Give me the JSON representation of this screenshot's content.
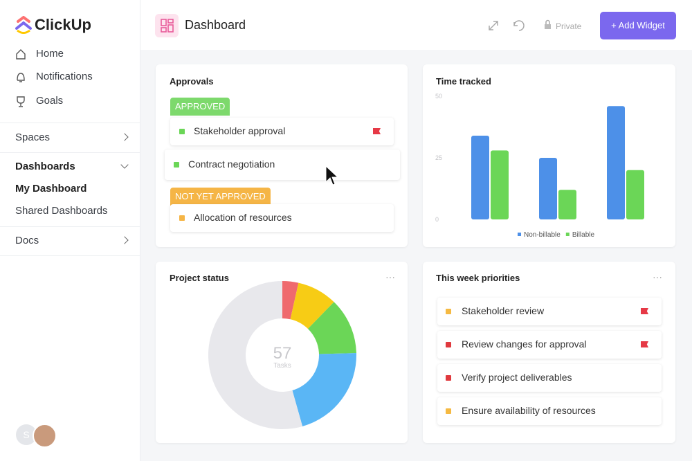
{
  "sidebar": {
    "logo": "ClickUp",
    "nav": [
      "Home",
      "Notifications",
      "Goals"
    ],
    "sections": [
      "Spaces",
      "Dashboards",
      "My Dashboard",
      "Shared Dashboards",
      "Docs"
    ],
    "avatar": "S"
  },
  "header": {
    "title": "Dashboard",
    "privacy": "Private",
    "button": "+ Add Widget"
  },
  "approvals": {
    "title": "Approvals",
    "groups": [
      {
        "label": "APPROVED",
        "color": "#7dd96c",
        "items": [
          {
            "text": "Stakeholder approval",
            "color": "#6bd657",
            "flagged": true
          },
          {
            "text": "Contract negotiation",
            "color": "#6bd657",
            "flagged": false
          }
        ]
      },
      {
        "label": "NOT YET APPROVED",
        "color": "#f5b546",
        "items": [
          {
            "text": "Allocation of resources",
            "color": "#f5b546",
            "flagged": false
          }
        ]
      }
    ]
  },
  "priorities": {
    "title": "This week priorities",
    "items": [
      {
        "text": "Stakeholder review",
        "color": "#f5b942",
        "flagged": true
      },
      {
        "text": "Review changes for approval",
        "color": "#e0393e",
        "flagged": true
      },
      {
        "text": "Verify project deliverables",
        "color": "#e0393e",
        "flagged": false
      },
      {
        "text": "Ensure availability of resources",
        "color": "#f5b942",
        "flagged": false
      }
    ]
  },
  "chart_data": [
    {
      "type": "bar",
      "title": "Time tracked",
      "series": [
        {
          "name": "Non-billable",
          "color": "#4d90e8",
          "values": [
            34,
            25,
            46
          ]
        },
        {
          "name": "Billable",
          "color": "#6bd657",
          "values": [
            28,
            12,
            20
          ]
        }
      ],
      "ylim": [
        0,
        50
      ],
      "yticks": [
        0,
        25,
        50
      ],
      "grid": false,
      "legend": "bottom"
    },
    {
      "type": "pie",
      "title": "Project status",
      "values": [
        2,
        5,
        7,
        12,
        31
      ],
      "colors": [
        "#ef6a6e",
        "#f7cc15",
        "#6bd657",
        "#5ab6f5",
        "#e8e8ec"
      ],
      "donut": true,
      "center_value": 57,
      "center_label": "Tasks"
    }
  ]
}
